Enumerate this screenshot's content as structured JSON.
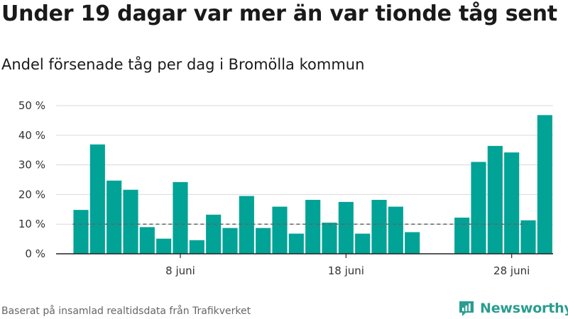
{
  "title": "Under 19 dagar var mer än var tionde tåg sent",
  "subtitle": "Andel försenade tåg per dag i Bromölla kommun",
  "source": "Baserat på insamlad realtidsdata från Trafikverket",
  "brand": {
    "name": "Newsworthy",
    "icon": "newsworthy-logo-icon",
    "color": "#2a9d8f"
  },
  "colors": {
    "bar": "#00a396",
    "grid": "#d9d9d9",
    "reference": "#666666",
    "axis": "#222222"
  },
  "chart_data": {
    "type": "bar",
    "title": "Andel försenade tåg per dag i Bromölla kommun",
    "xlabel": "",
    "ylabel": "",
    "x_unit": "day of June",
    "x_ticks": [
      {
        "x": 8,
        "label": "8 juni"
      },
      {
        "x": 18,
        "label": "18 juni"
      },
      {
        "x": 28,
        "label": "28 juni"
      }
    ],
    "y_ticks": [
      {
        "y": 0,
        "label": "0 %"
      },
      {
        "y": 10,
        "label": "10 %"
      },
      {
        "y": 20,
        "label": "20 %"
      },
      {
        "y": 30,
        "label": "30 %"
      },
      {
        "y": 40,
        "label": "40 %"
      },
      {
        "y": 50,
        "label": "50 %"
      }
    ],
    "ylim": [
      0,
      50
    ],
    "xlim": [
      0.5,
      30.5
    ],
    "grid": true,
    "reference_line": 10,
    "x": [
      2,
      3,
      4,
      5,
      6,
      7,
      8,
      9,
      10,
      11,
      12,
      13,
      14,
      15,
      16,
      17,
      18,
      19,
      20,
      21,
      22,
      25,
      26,
      27,
      28,
      29,
      30
    ],
    "values": [
      14.8,
      36.9,
      24.7,
      21.6,
      9.0,
      5.1,
      24.2,
      4.6,
      13.2,
      8.7,
      19.5,
      8.7,
      15.9,
      6.8,
      18.2,
      10.5,
      17.5,
      6.8,
      18.2,
      15.9,
      7.3,
      12.2,
      31.0,
      36.4,
      34.2,
      11.3,
      46.8
    ]
  }
}
